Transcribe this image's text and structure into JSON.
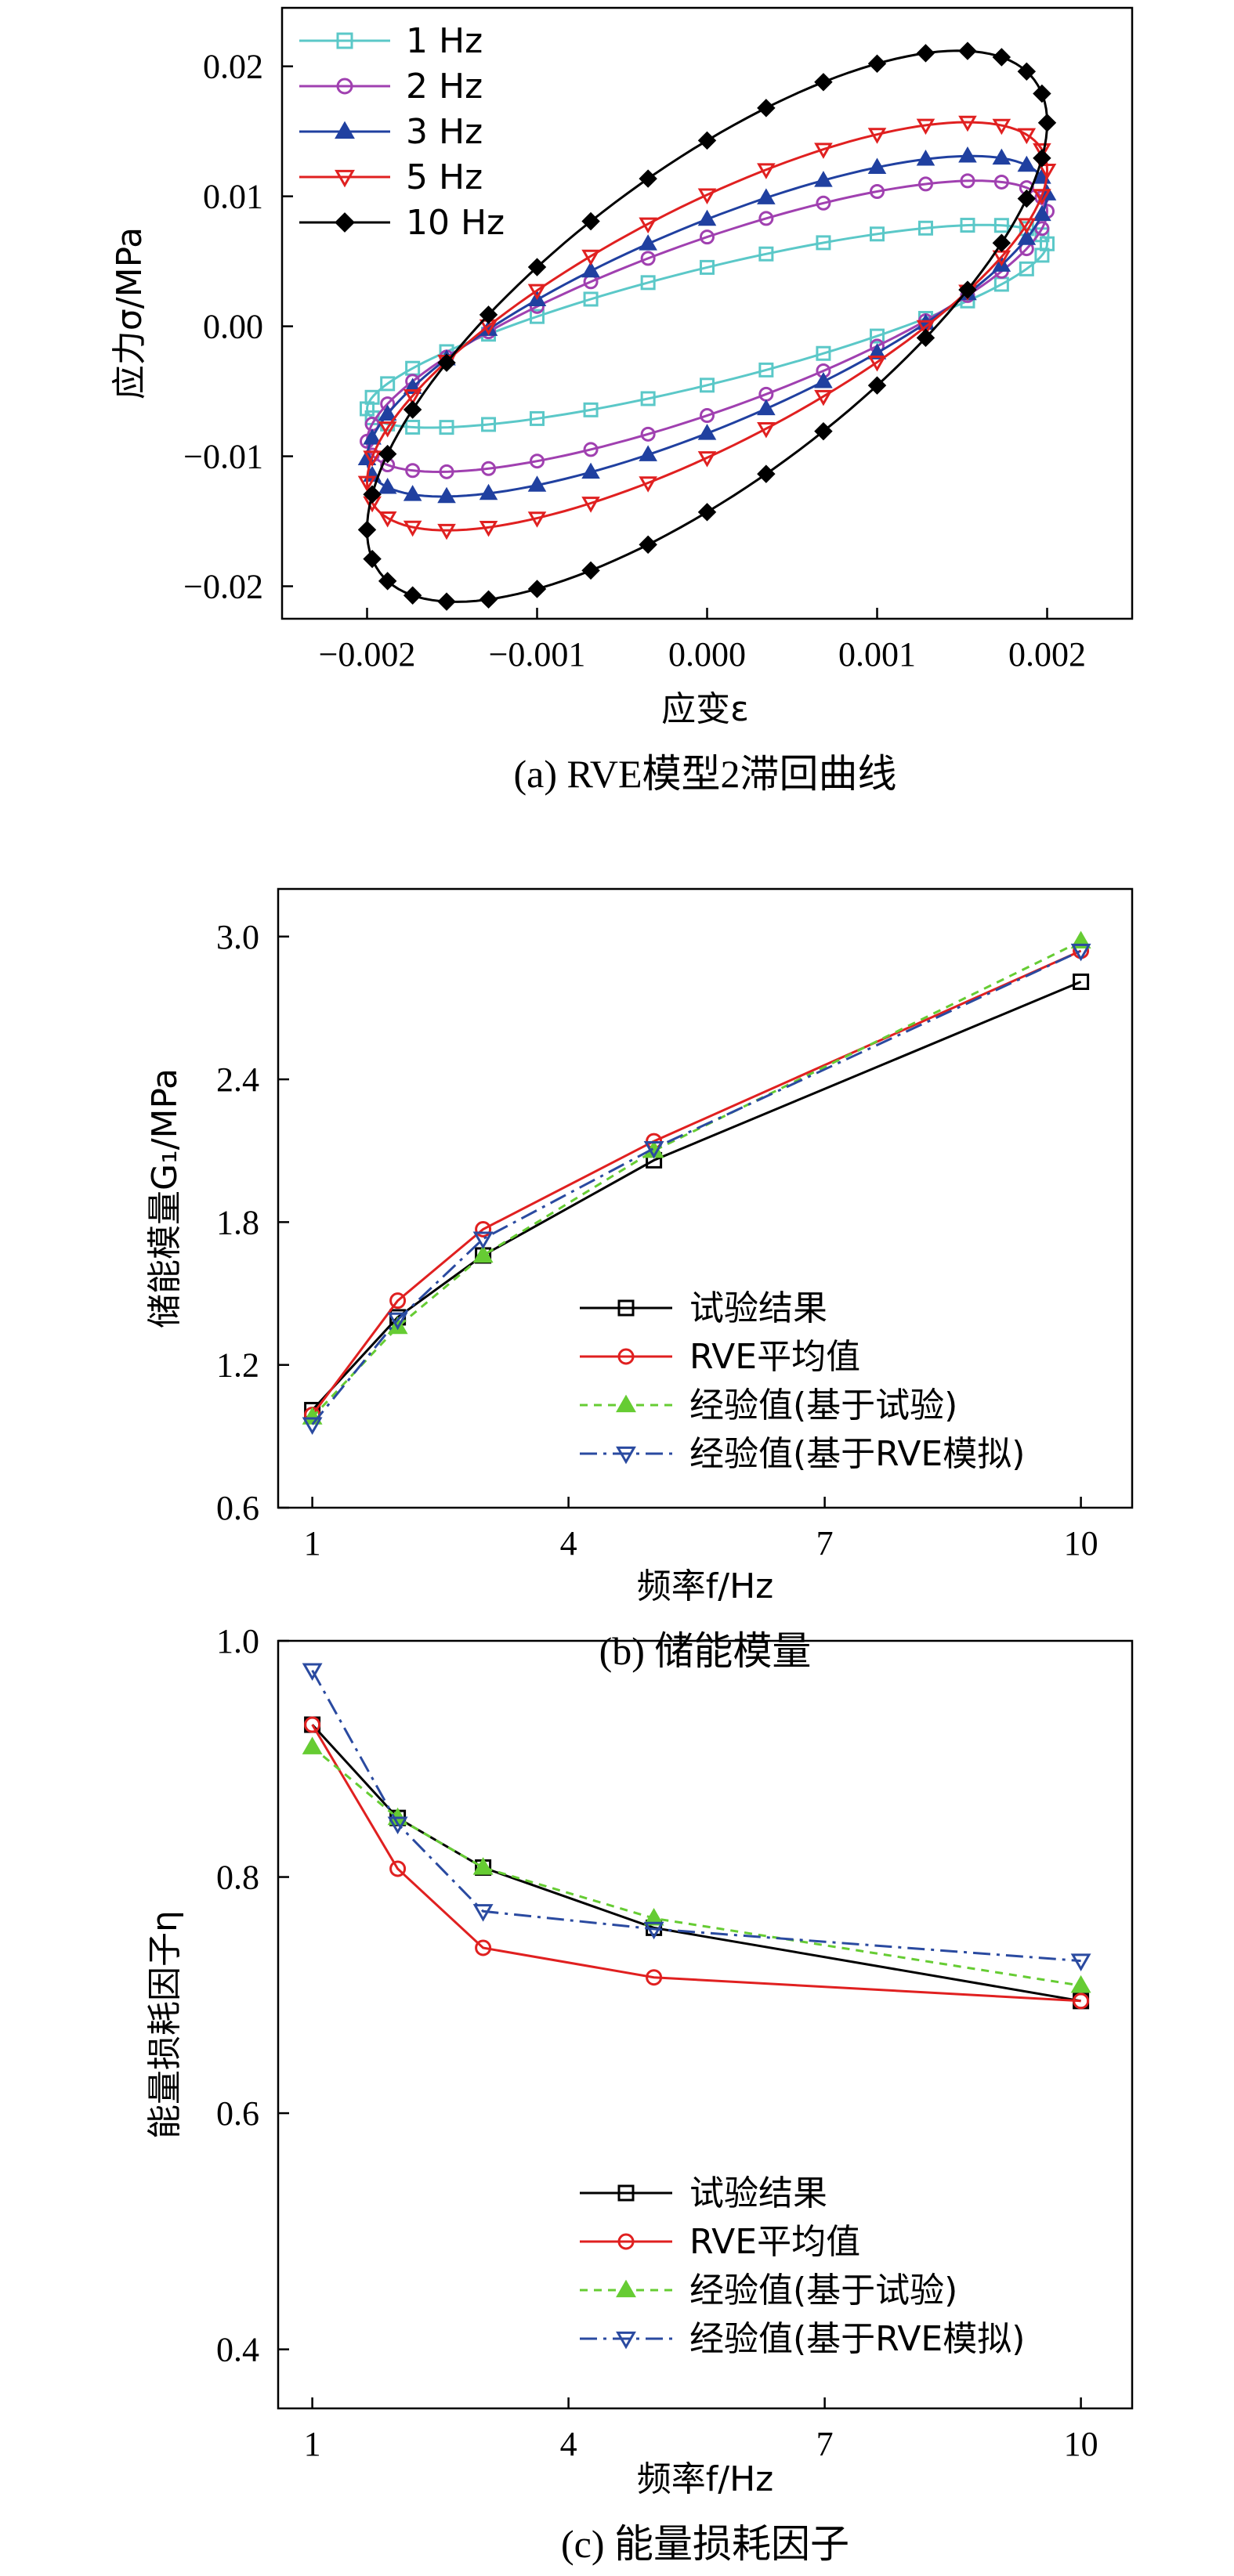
{
  "chart_data": [
    {
      "type": "line",
      "caption": "(a) RVE模型2滞回曲线",
      "xlabel": "应变ε",
      "ylabel": "应力σ/MPa",
      "xlim": [
        -0.0025,
        0.0025
      ],
      "ylim": [
        -0.0225,
        0.0245
      ],
      "xticks": [
        -0.002,
        -0.001,
        0.0,
        0.001,
        0.002
      ],
      "xtick_labels": [
        "−0.002",
        "−0.001",
        "0.000",
        "0.001",
        "0.002"
      ],
      "yticks": [
        -0.02,
        -0.01,
        0.0,
        0.01,
        0.02
      ],
      "ytick_labels": [
        "−0.02",
        "−0.01",
        "0.00",
        "0.01",
        "0.02"
      ],
      "legend_position": "top-left",
      "strain_amplitude": 0.002,
      "series": [
        {
          "name": "1 Hz",
          "color": "#5bc8c8",
          "marker": "square",
          "amplitude": 0.0078,
          "phase": 0.62
        },
        {
          "name": "2 Hz",
          "color": "#a040b0",
          "marker": "circle",
          "amplitude": 0.0112,
          "phase": 0.66
        },
        {
          "name": "3 Hz",
          "color": "#2040a0",
          "marker": "triangle-up",
          "amplitude": 0.0131,
          "phase": 0.68
        },
        {
          "name": "5 Hz",
          "color": "#e02020",
          "marker": "triangle-down",
          "amplitude": 0.0157,
          "phase": 0.7
        },
        {
          "name": "10 Hz",
          "color": "#000000",
          "marker": "diamond",
          "amplitude": 0.0212,
          "phase": 0.74
        }
      ]
    },
    {
      "type": "line",
      "caption": "(b) 储能模量",
      "xlabel": "频率f/Hz",
      "ylabel": "储能模量G₁/MPa",
      "xlim": [
        0.6,
        10.6
      ],
      "ylim": [
        0.6,
        3.2
      ],
      "xticks": [
        1,
        4,
        7,
        10
      ],
      "xtick_labels": [
        "1",
        "4",
        "7",
        "10"
      ],
      "yticks": [
        0.6,
        1.2,
        1.8,
        2.4,
        3.0
      ],
      "ytick_labels": [
        "0.6",
        "1.2",
        "1.8",
        "2.4",
        "3.0"
      ],
      "legend_position": "bottom-right",
      "x": [
        1,
        2,
        3,
        5,
        10
      ],
      "series": [
        {
          "name": "试验结果",
          "color": "#000000",
          "marker": "square",
          "dash": "",
          "values": [
            1.01,
            1.4,
            1.66,
            2.06,
            2.81
          ]
        },
        {
          "name": "RVE平均值",
          "color": "#e02020",
          "marker": "circle",
          "dash": "",
          "values": [
            0.99,
            1.47,
            1.77,
            2.14,
            2.94
          ]
        },
        {
          "name": "经验值(基于试验)",
          "color": "#66cc33",
          "marker": "triangle-up",
          "dash": "10,8",
          "values": [
            0.98,
            1.36,
            1.66,
            2.1,
            2.98
          ]
        },
        {
          "name": "经验值(基于RVE模拟)",
          "color": "#2a4aa0",
          "marker": "triangle-down",
          "dash": "22,8,4,8",
          "values": [
            0.95,
            1.39,
            1.73,
            2.11,
            2.94
          ]
        }
      ]
    },
    {
      "type": "line",
      "caption": "(c) 能量损耗因子",
      "xlabel": "频率f/Hz",
      "ylabel": "能量损耗因子η",
      "xlim": [
        0.6,
        10.6
      ],
      "ylim": [
        0.35,
        1.0
      ],
      "xticks": [
        1,
        4,
        7,
        10
      ],
      "xtick_labels": [
        "1",
        "4",
        "7",
        "10"
      ],
      "yticks": [
        0.4,
        0.6,
        0.8,
        1.0
      ],
      "ytick_labels": [
        "0.4",
        "0.6",
        "0.8",
        "1.0"
      ],
      "legend_position": "bottom-right",
      "x": [
        1,
        2,
        3,
        5,
        10
      ],
      "series": [
        {
          "name": "试验结果",
          "color": "#000000",
          "marker": "square",
          "dash": "",
          "values": [
            0.929,
            0.85,
            0.808,
            0.757,
            0.695
          ]
        },
        {
          "name": "RVE平均值",
          "color": "#e02020",
          "marker": "circle",
          "dash": "",
          "values": [
            0.929,
            0.807,
            0.74,
            0.715,
            0.695
          ]
        },
        {
          "name": "经验值(基于试验)",
          "color": "#66cc33",
          "marker": "triangle-up",
          "dash": "10,8",
          "values": [
            0.91,
            0.85,
            0.808,
            0.765,
            0.708
          ]
        },
        {
          "name": "经验值(基于RVE模拟)",
          "color": "#2a4aa0",
          "marker": "triangle-down",
          "dash": "22,8,4,8",
          "values": [
            0.975,
            0.845,
            0.771,
            0.756,
            0.729
          ]
        }
      ]
    }
  ]
}
